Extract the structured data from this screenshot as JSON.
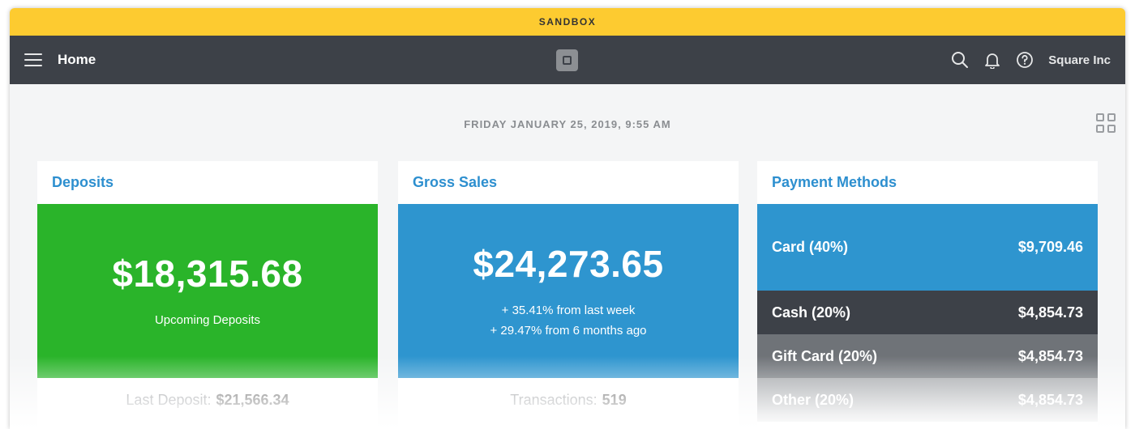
{
  "banner": {
    "label": "SANDBOX"
  },
  "nav": {
    "title": "Home",
    "account_name": "Square Inc",
    "icons": [
      "menu-icon",
      "square-logo-icon",
      "search-icon",
      "bell-icon",
      "help-icon"
    ]
  },
  "datetime": "FRIDAY JANUARY 25, 2019, 9:55 AM",
  "colors": {
    "sandbox": "#fdcb30",
    "navbar": "#3d4148",
    "deposits": "#2ab42a",
    "sales": "#2e95cf",
    "link": "#2d8fcf"
  },
  "deposits": {
    "title": "Deposits",
    "amount": "$18,315.68",
    "caption": "Upcoming Deposits",
    "footer_label": "Last Deposit:",
    "footer_value": "$21,566.34"
  },
  "sales": {
    "title": "Gross Sales",
    "amount": "$24,273.65",
    "change_week": "+ 35.41% from last week",
    "change_6mo": "+ 29.47% from 6 months ago",
    "footer_label": "Transactions:",
    "footer_value": "519"
  },
  "payments": {
    "title": "Payment Methods",
    "items": [
      {
        "label": "Card (40%)",
        "value": "$9,709.46"
      },
      {
        "label": "Cash (20%)",
        "value": "$4,854.73"
      },
      {
        "label": "Gift Card (20%)",
        "value": "$4,854.73"
      },
      {
        "label": "Other (20%)",
        "value": "$4,854.73"
      }
    ]
  }
}
